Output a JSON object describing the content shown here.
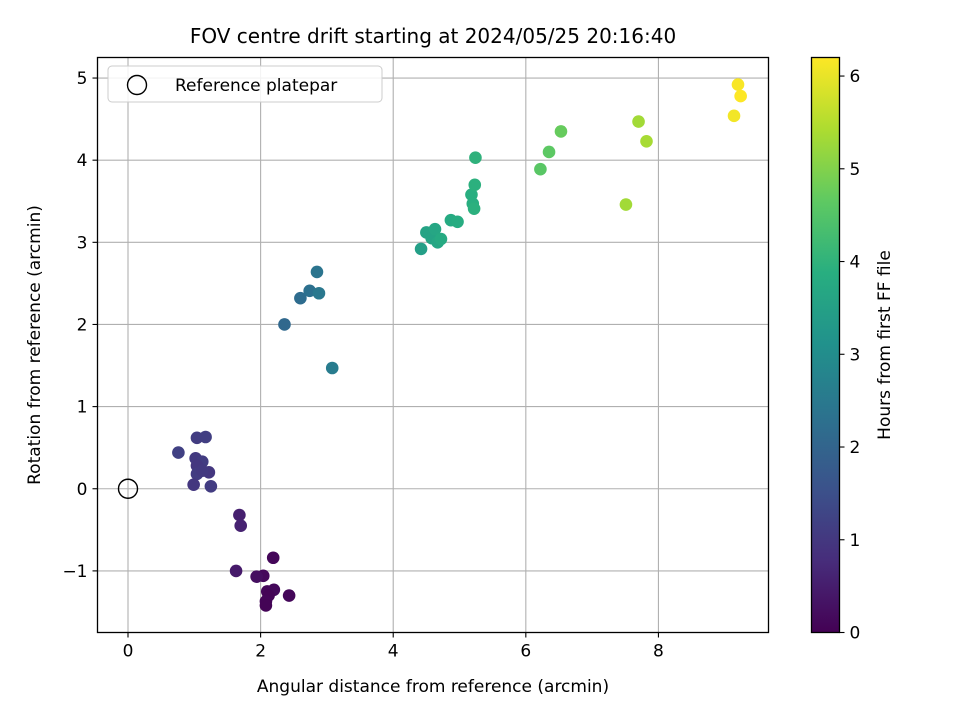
{
  "chart_data": {
    "type": "scatter",
    "title": "FOV centre drift starting at 2024/05/25 20:16:40",
    "xlabel": "Angular distance from reference (arcmin)",
    "ylabel": "Rotation from reference (arcmin)",
    "xlim": [
      -0.46,
      9.66
    ],
    "ylim": [
      -1.75,
      5.25
    ],
    "xticks": [
      0,
      2,
      4,
      6,
      8
    ],
    "yticks": [
      -1,
      0,
      1,
      2,
      3,
      4,
      5
    ],
    "xtick_labels": [
      "0",
      "2",
      "4",
      "6",
      "8"
    ],
    "ytick_labels": [
      "−1",
      "0",
      "1",
      "2",
      "3",
      "4",
      "5"
    ],
    "grid": true,
    "legend": {
      "position": "top-left",
      "entries": [
        "Reference platepar"
      ]
    },
    "reference_point": {
      "x": 0,
      "y": 0
    },
    "colorbar": {
      "label": "Hours from first FF file",
      "range": [
        0,
        6.2
      ],
      "ticks": [
        0,
        1,
        2,
        3,
        4,
        5,
        6
      ],
      "tick_labels": [
        "0",
        "1",
        "2",
        "3",
        "4",
        "5",
        "6"
      ],
      "colormap": "viridis"
    },
    "points": [
      {
        "x": 2.19,
        "y": -0.84,
        "t": 0.1
      },
      {
        "x": 2.04,
        "y": -1.06,
        "t": 0.15
      },
      {
        "x": 2.1,
        "y": -1.25,
        "t": 0.1
      },
      {
        "x": 2.2,
        "y": -1.23,
        "t": 0.12
      },
      {
        "x": 2.12,
        "y": -1.3,
        "t": 0.05
      },
      {
        "x": 2.08,
        "y": -1.37,
        "t": 0.08
      },
      {
        "x": 2.08,
        "y": -1.42,
        "t": 0.05
      },
      {
        "x": 2.43,
        "y": -1.3,
        "t": 0.1
      },
      {
        "x": 1.94,
        "y": -1.07,
        "t": 0.25
      },
      {
        "x": 1.63,
        "y": -1.0,
        "t": 0.45
      },
      {
        "x": 1.68,
        "y": -0.32,
        "t": 0.55
      },
      {
        "x": 1.7,
        "y": -0.45,
        "t": 0.6
      },
      {
        "x": 0.76,
        "y": 0.44,
        "t": 1.2
      },
      {
        "x": 1.04,
        "y": 0.62,
        "t": 1.1
      },
      {
        "x": 1.17,
        "y": 0.63,
        "t": 1.15
      },
      {
        "x": 1.02,
        "y": 0.37,
        "t": 1.05
      },
      {
        "x": 1.12,
        "y": 0.33,
        "t": 1.1
      },
      {
        "x": 1.04,
        "y": 0.28,
        "t": 1.0
      },
      {
        "x": 1.22,
        "y": 0.2,
        "t": 1.0
      },
      {
        "x": 1.04,
        "y": 0.18,
        "t": 1.1
      },
      {
        "x": 1.12,
        "y": 0.22,
        "t": 1.05
      },
      {
        "x": 0.99,
        "y": 0.05,
        "t": 1.0
      },
      {
        "x": 1.25,
        "y": 0.03,
        "t": 1.1
      },
      {
        "x": 2.36,
        "y": 2.0,
        "t": 2.1
      },
      {
        "x": 2.6,
        "y": 2.32,
        "t": 2.2
      },
      {
        "x": 2.74,
        "y": 2.41,
        "t": 2.3
      },
      {
        "x": 2.88,
        "y": 2.38,
        "t": 2.5
      },
      {
        "x": 2.85,
        "y": 2.64,
        "t": 2.4
      },
      {
        "x": 3.08,
        "y": 1.47,
        "t": 2.6
      },
      {
        "x": 4.42,
        "y": 2.92,
        "t": 3.5
      },
      {
        "x": 4.5,
        "y": 3.12,
        "t": 3.6
      },
      {
        "x": 4.58,
        "y": 3.05,
        "t": 3.6
      },
      {
        "x": 4.63,
        "y": 3.16,
        "t": 3.7
      },
      {
        "x": 4.67,
        "y": 3.0,
        "t": 3.7
      },
      {
        "x": 4.72,
        "y": 3.04,
        "t": 3.8
      },
      {
        "x": 4.87,
        "y": 3.27,
        "t": 3.8
      },
      {
        "x": 4.97,
        "y": 3.25,
        "t": 3.85
      },
      {
        "x": 5.18,
        "y": 3.58,
        "t": 3.9
      },
      {
        "x": 5.2,
        "y": 3.47,
        "t": 3.9
      },
      {
        "x": 5.22,
        "y": 3.41,
        "t": 3.95
      },
      {
        "x": 5.23,
        "y": 3.7,
        "t": 3.95
      },
      {
        "x": 5.24,
        "y": 4.03,
        "t": 4.0
      },
      {
        "x": 6.22,
        "y": 3.89,
        "t": 4.6
      },
      {
        "x": 6.35,
        "y": 4.1,
        "t": 4.65
      },
      {
        "x": 6.53,
        "y": 4.35,
        "t": 4.75
      },
      {
        "x": 7.51,
        "y": 3.46,
        "t": 5.35
      },
      {
        "x": 7.7,
        "y": 4.47,
        "t": 5.35
      },
      {
        "x": 7.82,
        "y": 4.23,
        "t": 5.4
      },
      {
        "x": 9.14,
        "y": 4.54,
        "t": 6.1
      },
      {
        "x": 9.2,
        "y": 4.92,
        "t": 6.15
      },
      {
        "x": 9.24,
        "y": 4.78,
        "t": 6.2
      }
    ]
  }
}
